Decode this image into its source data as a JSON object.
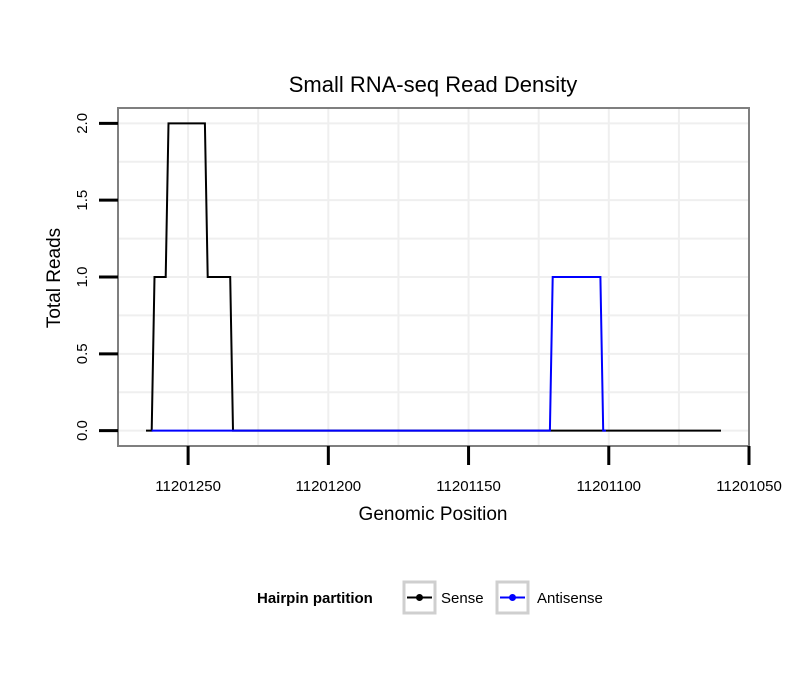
{
  "chart_data": {
    "type": "line",
    "title": "Small RNA-seq Read Density",
    "xlabel": "Genomic Position",
    "ylabel": "Total Reads",
    "xlim": [
      11201275,
      11201050
    ],
    "ylim": [
      -0.1,
      2.1
    ],
    "x_ticks": [
      11201250,
      11201200,
      11201150,
      11201100,
      11201050
    ],
    "x_tick_labels": [
      "11201250",
      "11201200",
      "11201150",
      "11201100",
      "11201050"
    ],
    "y_ticks": [
      0,
      0.5,
      1,
      1.5,
      2
    ],
    "y_tick_labels": [
      "0.0",
      "0.5",
      "1.0",
      "1.5",
      "2.0"
    ],
    "grid": true,
    "legend": {
      "title": "Hairpin partition",
      "position": "bottom",
      "items": [
        "Sense",
        "Antisense"
      ]
    },
    "series": [
      {
        "name": "Sense",
        "color": "#000000",
        "points": [
          [
            11201265,
            0
          ],
          [
            11201263,
            0
          ],
          [
            11201262,
            1
          ],
          [
            11201258,
            1
          ],
          [
            11201257,
            2
          ],
          [
            11201244,
            2
          ],
          [
            11201243,
            1
          ],
          [
            11201235,
            1
          ],
          [
            11201234,
            0
          ],
          [
            11201108,
            0
          ],
          [
            11201106,
            0
          ],
          [
            11201060,
            0
          ]
        ]
      },
      {
        "name": "Antisense",
        "color": "#0000ff",
        "points": [
          [
            11201263,
            0
          ],
          [
            11201234,
            0
          ],
          [
            11201121,
            0
          ],
          [
            11201120,
            1
          ],
          [
            11201103,
            1
          ],
          [
            11201102,
            0
          ],
          [
            11201101,
            0
          ]
        ]
      }
    ]
  }
}
